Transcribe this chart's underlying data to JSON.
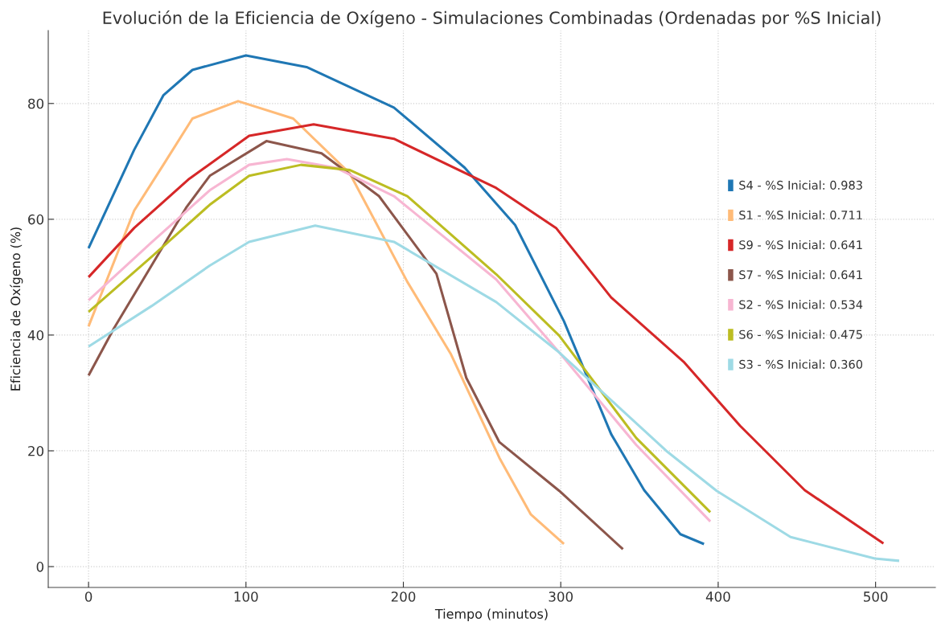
{
  "chart_data": {
    "type": "line",
    "title": "Evolución de la Eficiencia de Oxígeno - Simulaciones Combinadas (Ordenadas por %S Inicial)",
    "xlabel": "Tiempo (minutos)",
    "ylabel": "Eficiencia de Oxígeno (%)",
    "xlim": [
      -25.6,
      538
    ],
    "ylim": [
      -3.6,
      92.6
    ],
    "xticks": [
      0,
      100,
      200,
      300,
      400,
      500
    ],
    "yticks": [
      0,
      20,
      40,
      60,
      80
    ],
    "grid": true,
    "legend": "right",
    "marker": "none",
    "line_style": "solid",
    "series": [
      {
        "name": "S4 - %S Inicial: 0.983",
        "color": "#1f77b4",
        "x": [
          0,
          29,
          47.5,
          66,
          100,
          138.5,
          194,
          239,
          271,
          302,
          332,
          353,
          376,
          391
        ],
        "values": [
          55,
          72,
          81.4,
          85.8,
          88.3,
          86.3,
          79.3,
          68.9,
          59,
          42.4,
          22.9,
          13.2,
          5.6,
          3.9
        ]
      },
      {
        "name": "S1 - %S Inicial: 0.711",
        "color": "#ffbb78",
        "x": [
          0,
          29,
          47.5,
          66,
          95,
          130,
          166,
          202.5,
          230,
          261,
          281,
          302
        ],
        "values": [
          41.5,
          61.5,
          69.4,
          77.4,
          80.4,
          77.4,
          67.9,
          49.2,
          36.8,
          18.8,
          9,
          3.9
        ]
      },
      {
        "name": "S9 - %S Inicial: 0.641",
        "color": "#d62728",
        "x": [
          0,
          29,
          64,
          102,
          143,
          194,
          259,
          297,
          332,
          378,
          414,
          455,
          505
        ],
        "values": [
          50,
          58.5,
          67,
          74.4,
          76.4,
          73.9,
          65.4,
          58.5,
          46.5,
          35.4,
          24.3,
          13.2,
          4
        ]
      },
      {
        "name": "S7 - %S Inicial: 0.641",
        "color": "#8c564b",
        "x": [
          0,
          16,
          62,
          77,
          113,
          148,
          184.5,
          221,
          240,
          261,
          299,
          339.5
        ],
        "values": [
          33,
          41.1,
          62,
          67.5,
          73.5,
          71.4,
          64,
          50.6,
          32.6,
          21.5,
          13.1,
          3
        ]
      },
      {
        "name": "S2 - %S Inicial: 0.534",
        "color": "#f7b6d2",
        "x": [
          0,
          40,
          77,
          102,
          126,
          157,
          194,
          259,
          299,
          348,
          395
        ],
        "values": [
          46,
          56,
          65,
          69.4,
          70.4,
          68.9,
          64,
          49.6,
          37,
          21,
          7.8
        ]
      },
      {
        "name": "S6 - %S Inicial: 0.475",
        "color": "#bcbd22",
        "x": [
          0,
          40,
          77,
          102,
          135,
          166,
          202.5,
          259,
          299,
          348,
          395
        ],
        "values": [
          44,
          53.5,
          62.5,
          67.5,
          69.4,
          68.5,
          64,
          50.5,
          39.9,
          22.2,
          9.4
        ]
      },
      {
        "name": "S3 - %S Inicial: 0.360",
        "color": "#9edae5",
        "x": [
          0,
          40,
          77,
          102,
          144,
          194,
          259,
          299,
          367,
          399,
          446,
          499.5,
          515
        ],
        "values": [
          38,
          45,
          52,
          56.1,
          58.9,
          56.1,
          45.7,
          37,
          20,
          13.1,
          5.1,
          1.4,
          1
        ]
      }
    ]
  }
}
